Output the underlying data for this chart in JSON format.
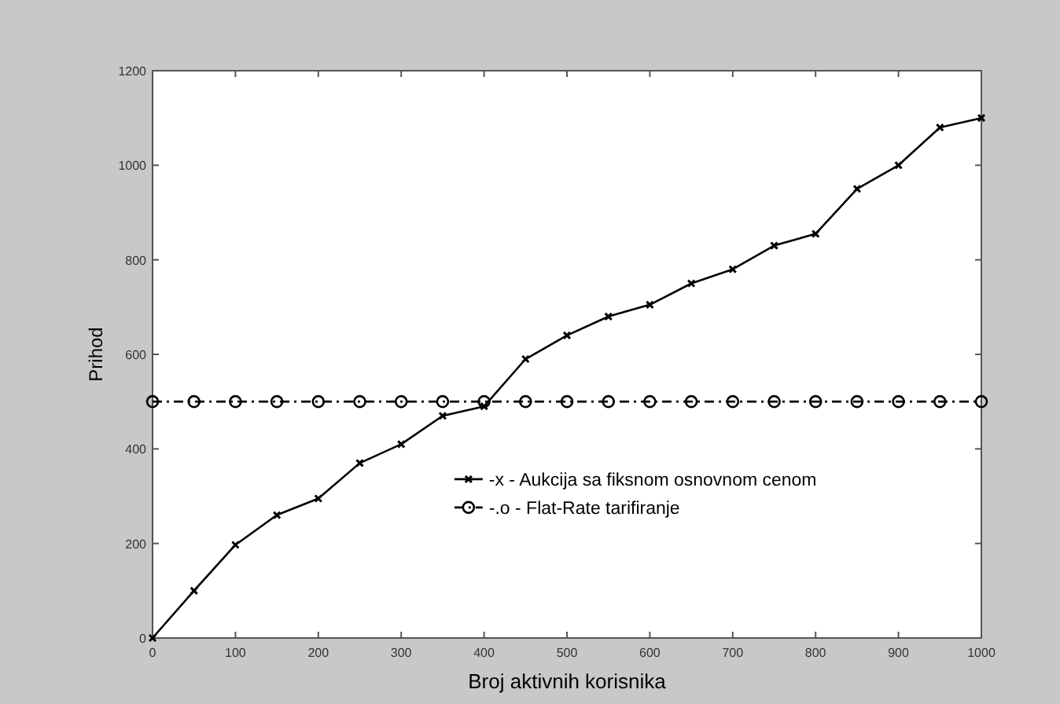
{
  "chart_data": {
    "type": "line",
    "xlabel": "Broj aktivnih korisnika",
    "ylabel": "Prihod",
    "x": [
      0,
      50,
      100,
      150,
      200,
      250,
      300,
      350,
      400,
      450,
      500,
      550,
      600,
      650,
      700,
      750,
      800,
      850,
      900,
      950,
      1000
    ],
    "series": [
      {
        "name": "-x - Aukcija sa fiksnom osnovnom cenom",
        "color": "#000000",
        "marker": "cross",
        "line_style": "solid",
        "values": [
          0,
          100,
          197,
          260,
          295,
          370,
          410,
          470,
          490,
          590,
          640,
          680,
          705,
          750,
          780,
          830,
          855,
          950,
          1000,
          1080,
          1100
        ]
      },
      {
        "name": "-.o - Flat-Rate tarifiranje",
        "color": "#000000",
        "marker": "circle",
        "line_style": "dashed",
        "values": [
          500,
          500,
          500,
          500,
          500,
          500,
          500,
          500,
          500,
          500,
          500,
          500,
          500,
          500,
          500,
          500,
          500,
          500,
          500,
          500,
          500
        ]
      }
    ],
    "xlim": [
      0,
      1000
    ],
    "xticks": [
      0,
      100,
      200,
      300,
      400,
      500,
      600,
      700,
      800,
      900,
      1000
    ],
    "ylim": [
      0,
      1200
    ],
    "yticks": [
      0,
      200,
      400,
      600,
      800,
      1000,
      1200
    ],
    "grid": false,
    "legend": "bottom right"
  }
}
